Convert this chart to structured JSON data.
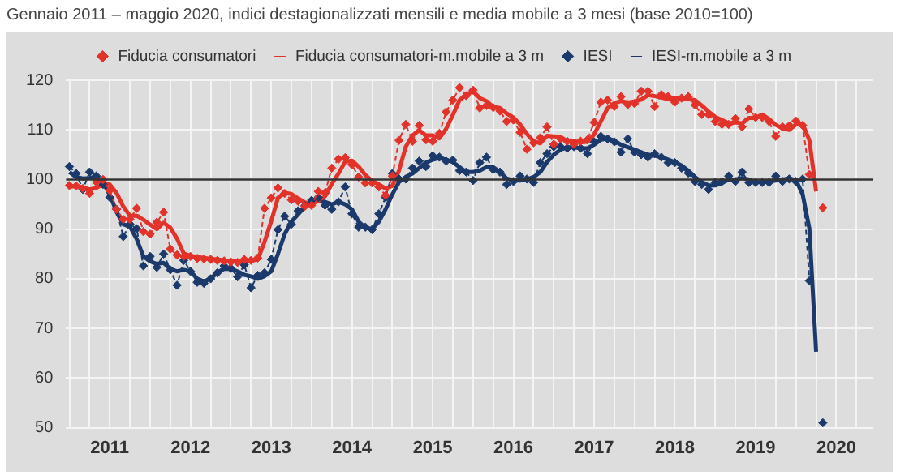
{
  "chart_data": {
    "type": "line",
    "title": "Gennaio 2011 – maggio  2020, indici destagionalizzati mensili e media mobile a 3 mesi (base 2010=100)",
    "categories": [
      null,
      null,
      null,
      null,
      null,
      null,
      "2011",
      null,
      null,
      null,
      null,
      null,
      null,
      null,
      null,
      null,
      null,
      null,
      "2012",
      null,
      null,
      null,
      null,
      null,
      null,
      null,
      null,
      null,
      null,
      null,
      "2013",
      null,
      null,
      null,
      null,
      null,
      null,
      null,
      null,
      null,
      null,
      null,
      "2014",
      null,
      null,
      null,
      null,
      null,
      null,
      null,
      null,
      null,
      null,
      null,
      "2015",
      null,
      null,
      null,
      null,
      null,
      null,
      null,
      null,
      null,
      null,
      null,
      "2016",
      null,
      null,
      null,
      null,
      null,
      null,
      null,
      null,
      null,
      null,
      null,
      "2017",
      null,
      null,
      null,
      null,
      null,
      null,
      null,
      null,
      null,
      null,
      null,
      "2018",
      null,
      null,
      null,
      null,
      null,
      null,
      null,
      null,
      null,
      null,
      null,
      "2019",
      null,
      null,
      null,
      null,
      null,
      null,
      null,
      null,
      null,
      null,
      null,
      "2020",
      null,
      null,
      null,
      null,
      null
    ],
    "series": [
      {
        "name": "Fiducia consumatori",
        "color": "#e2322a",
        "marker": "diamond",
        "line_style": "dashed",
        "values": [
          98.8,
          98.7,
          98.2,
          97.2,
          99.5,
          100.0,
          97.8,
          94.0,
          92.0,
          92.0,
          94.2,
          89.5,
          89.0,
          91.4,
          93.4,
          86.0,
          84.8,
          84.5,
          84.5,
          84.1,
          84.0,
          83.9,
          83.7,
          83.6,
          83.4,
          83.3,
          83.9,
          83.7,
          84.2,
          94.2,
          96.3,
          98.3,
          97.2,
          95.9,
          95.6,
          94.6,
          94.8,
          97.6,
          97.3,
          102.3,
          104.1,
          104.4,
          103.0,
          100.5,
          99.3,
          99.3,
          98.5,
          96.8,
          100.7,
          107.9,
          111.1,
          107.7,
          110.9,
          108.0,
          107.7,
          109.3,
          113.6,
          116.0,
          118.5,
          116.9,
          118.0,
          114.4,
          114.9,
          114.5,
          113.8,
          111.7,
          112.0,
          109.5,
          106.1,
          107.4,
          108.4,
          110.6,
          107.1,
          108.2,
          107.7,
          107.1,
          107.7,
          108.0,
          111.5,
          115.6,
          116.0,
          114.7,
          116.7,
          115.1,
          115.3,
          117.8,
          117.8,
          114.7,
          117.1,
          116.7,
          115.6,
          116.4,
          116.7,
          115.0,
          113.1,
          113.1,
          111.7,
          111.1,
          111.1,
          112.3,
          110.6,
          114.2,
          112.5,
          112.5,
          111.7,
          108.7,
          110.6,
          110.8,
          111.8,
          110.9,
          101.0,
          null,
          94.3,
          null,
          null,
          null,
          null,
          null,
          null,
          null
        ]
      },
      {
        "name": "Fiducia consumatori-m.mobile a 3 m",
        "color": "#e2322a",
        "marker": "none",
        "line_style": "solid",
        "values": [
          98.5,
          98.7,
          98.4,
          98.0,
          98.3,
          99.0,
          99.0,
          97.3,
          94.6,
          92.7,
          92.7,
          91.9,
          90.9,
          90.0,
          91.3,
          90.3,
          88.1,
          85.1,
          84.6,
          84.4,
          84.2,
          84.0,
          83.9,
          83.7,
          83.6,
          83.4,
          83.5,
          83.6,
          83.9,
          87.4,
          91.6,
          96.3,
          97.3,
          97.1,
          96.2,
          95.4,
          95.0,
          95.7,
          96.6,
          99.1,
          101.2,
          103.6,
          103.8,
          102.6,
          100.9,
          99.7,
          99.0,
          98.2,
          98.7,
          101.8,
          106.6,
          108.9,
          109.9,
          108.9,
          108.9,
          108.3,
          110.2,
          113.0,
          116.0,
          117.1,
          117.8,
          116.4,
          115.8,
          114.6,
          114.4,
          113.3,
          112.5,
          111.1,
          109.2,
          107.7,
          107.3,
          108.8,
          108.7,
          108.6,
          107.7,
          107.7,
          107.5,
          107.6,
          109.1,
          111.7,
          114.4,
          115.4,
          115.8,
          115.5,
          115.7,
          116.1,
          117.0,
          116.8,
          116.5,
          116.2,
          116.5,
          116.2,
          116.2,
          116.0,
          114.9,
          113.7,
          112.6,
          112.0,
          111.3,
          111.5,
          111.3,
          112.4,
          112.4,
          113.1,
          112.2,
          111.0,
          110.3,
          110.0,
          111.1,
          111.2,
          107.9,
          97.6,
          null,
          null,
          null,
          null,
          null,
          null,
          null,
          null
        ]
      },
      {
        "name": "IESI",
        "color": "#1b3a6b",
        "marker": "diamond",
        "line_style": "dashed",
        "values": [
          102.6,
          101.2,
          98.0,
          101.5,
          100.7,
          99.0,
          96.4,
          94.0,
          88.5,
          91.0,
          90.1,
          82.6,
          84.5,
          82.3,
          85.0,
          81.8,
          78.7,
          83.7,
          81.5,
          79.3,
          79.1,
          80.0,
          81.2,
          82.6,
          82.1,
          80.4,
          82.8,
          78.2,
          80.7,
          81.2,
          83.9,
          89.9,
          92.6,
          91.0,
          93.7,
          94.7,
          95.8,
          96.4,
          94.8,
          94.0,
          95.5,
          98.5,
          93.1,
          90.4,
          90.4,
          89.9,
          93.1,
          96.4,
          101.2,
          100.1,
          100.1,
          102.3,
          103.7,
          102.6,
          104.8,
          104.5,
          103.7,
          103.9,
          101.8,
          101.5,
          99.8,
          103.4,
          104.5,
          102.0,
          101.5,
          99.0,
          99.6,
          100.7,
          100.1,
          99.4,
          103.4,
          105.2,
          106.6,
          106.6,
          106.3,
          106.6,
          106.3,
          105.2,
          107.6,
          108.7,
          108.2,
          107.6,
          105.5,
          108.2,
          105.5,
          105.0,
          104.5,
          105.2,
          104.5,
          103.4,
          103.4,
          102.3,
          101.3,
          99.6,
          99.0,
          98.0,
          99.4,
          99.6,
          100.7,
          99.6,
          101.5,
          99.4,
          99.4,
          99.4,
          99.4,
          100.7,
          99.6,
          100.1,
          99.6,
          100.1,
          79.6,
          null,
          51.0,
          null,
          null,
          null,
          null,
          null,
          null,
          null
        ]
      },
      {
        "name": "IESI-m.mobile a 3 m",
        "color": "#1b3a6b",
        "marker": "none",
        "line_style": "solid",
        "values": [
          101.5,
          100.5,
          100.2,
          100.3,
          100.6,
          99.5,
          97.0,
          93.5,
          91.0,
          90.5,
          88.0,
          84.5,
          83.5,
          83.0,
          83.2,
          82.0,
          81.5,
          81.8,
          81.5,
          80.0,
          79.5,
          80.0,
          81.3,
          82.0,
          82.0,
          81.5,
          80.8,
          80.5,
          80.0,
          80.5,
          81.5,
          85.0,
          89.0,
          91.5,
          93.0,
          94.5,
          95.5,
          95.8,
          95.5,
          95.0,
          95.5,
          95.0,
          94.0,
          91.5,
          90.3,
          90.0,
          91.5,
          94.0,
          97.0,
          99.5,
          100.5,
          101.2,
          102.3,
          103.4,
          104.0,
          104.3,
          104.0,
          103.5,
          102.5,
          101.5,
          101.5,
          101.8,
          102.5,
          102.5,
          101.5,
          100.2,
          99.8,
          99.8,
          100.0,
          100.5,
          101.5,
          103.5,
          105.0,
          106.0,
          106.5,
          106.5,
          106.3,
          106.3,
          107.0,
          108.0,
          108.3,
          107.8,
          107.0,
          106.5,
          106.0,
          105.5,
          105.0,
          104.8,
          104.5,
          104.0,
          103.5,
          102.8,
          101.8,
          100.5,
          99.5,
          98.8,
          98.8,
          99.3,
          100.0,
          100.0,
          100.3,
          100.0,
          99.5,
          99.4,
          99.6,
          99.8,
          100.0,
          100.2,
          99.9,
          97.0,
          90.1,
          65.3,
          null,
          null,
          null,
          null,
          null,
          null,
          null,
          null
        ]
      }
    ],
    "ylim": [
      50,
      120
    ],
    "yticks": [
      50,
      60,
      70,
      80,
      90,
      100,
      110,
      120
    ],
    "ref_lines": [
      {
        "axis": "y",
        "value": 100,
        "label": null,
        "color": "#333333"
      }
    ],
    "grid": true,
    "legend": "top"
  }
}
